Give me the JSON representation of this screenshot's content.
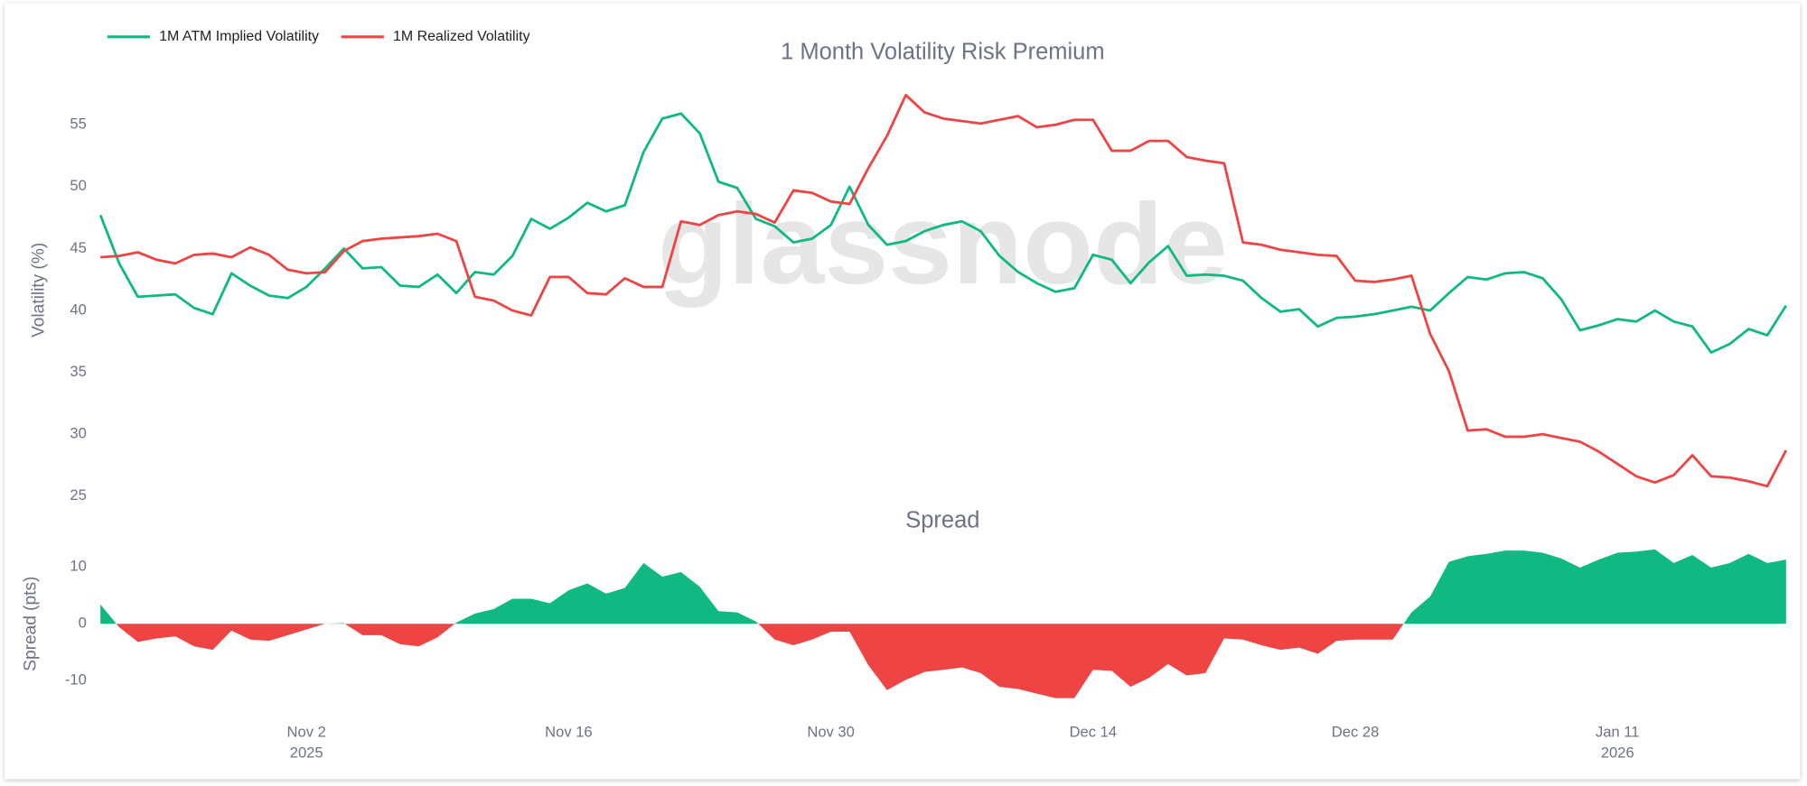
{
  "chart_data": [
    {
      "type": "line",
      "title": "1 Month Volatility Risk Premium",
      "ylabel": "Volatility (%)",
      "watermark": "glassnode",
      "legend": "top-left",
      "xlim": [
        "2025-10-22",
        "2026-01-20"
      ],
      "x": [
        "2025-10-22",
        "2025-10-23",
        "2025-10-24",
        "2025-10-25",
        "2025-10-26",
        "2025-10-27",
        "2025-10-28",
        "2025-10-29",
        "2025-10-30",
        "2025-10-31",
        "2025-11-01",
        "2025-11-02",
        "2025-11-03",
        "2025-11-04",
        "2025-11-05",
        "2025-11-06",
        "2025-11-07",
        "2025-11-08",
        "2025-11-09",
        "2025-11-10",
        "2025-11-11",
        "2025-11-12",
        "2025-11-13",
        "2025-11-14",
        "2025-11-15",
        "2025-11-16",
        "2025-11-17",
        "2025-11-18",
        "2025-11-19",
        "2025-11-20",
        "2025-11-21",
        "2025-11-22",
        "2025-11-23",
        "2025-11-24",
        "2025-11-25",
        "2025-11-26",
        "2025-11-27",
        "2025-11-28",
        "2025-11-29",
        "2025-11-30",
        "2025-12-01",
        "2025-12-02",
        "2025-12-03",
        "2025-12-04",
        "2025-12-05",
        "2025-12-06",
        "2025-12-07",
        "2025-12-08",
        "2025-12-09",
        "2025-12-10",
        "2025-12-11",
        "2025-12-12",
        "2025-12-13",
        "2025-12-14",
        "2025-12-15",
        "2025-12-16",
        "2025-12-17",
        "2025-12-18",
        "2025-12-19",
        "2025-12-20",
        "2025-12-21",
        "2025-12-22",
        "2025-12-23",
        "2025-12-24",
        "2025-12-25",
        "2025-12-26",
        "2025-12-27",
        "2025-12-28",
        "2025-12-29",
        "2025-12-30",
        "2025-12-31",
        "2026-01-01",
        "2026-01-02",
        "2026-01-03",
        "2026-01-04",
        "2026-01-05",
        "2026-01-06",
        "2026-01-07",
        "2026-01-08",
        "2026-01-09",
        "2026-01-10",
        "2026-01-11",
        "2026-01-12",
        "2026-01-13",
        "2026-01-14",
        "2026-01-15",
        "2026-01-16",
        "2026-01-17",
        "2026-01-18",
        "2026-01-19",
        "2026-01-20"
      ],
      "ylim": [
        22.5,
        59.5
      ],
      "yticks": [
        25,
        30,
        35,
        40,
        45,
        50,
        55
      ],
      "series": [
        {
          "name": "1M ATM Implied Volatility",
          "color": "#10b981",
          "values": [
            47.7,
            43.8,
            41.1,
            41.2,
            41.3,
            40.2,
            39.7,
            43.0,
            42.0,
            41.2,
            41.0,
            41.9,
            43.4,
            45.0,
            43.4,
            43.5,
            42.0,
            41.9,
            42.9,
            41.4,
            43.1,
            42.9,
            44.4,
            47.4,
            46.6,
            47.5,
            48.7,
            48.0,
            48.5,
            52.8,
            55.5,
            55.9,
            54.3,
            50.4,
            49.9,
            47.4,
            46.8,
            45.5,
            45.8,
            46.9,
            50.0,
            46.9,
            45.3,
            45.6,
            46.4,
            46.9,
            47.2,
            46.4,
            44.4,
            43.1,
            42.2,
            41.5,
            41.8,
            44.5,
            44.1,
            42.2,
            43.9,
            45.2,
            42.8,
            42.9,
            42.8,
            42.4,
            41.0,
            39.9,
            40.1,
            38.7,
            39.4,
            39.5,
            39.7,
            40.0,
            40.3,
            40.0,
            41.4,
            42.7,
            42.5,
            43.0,
            43.1,
            42.6,
            40.9,
            38.4,
            38.8,
            39.3,
            39.1,
            40.0,
            39.1,
            38.7,
            36.6,
            37.3,
            38.5,
            38.0,
            40.4
          ]
        },
        {
          "name": "1M Realized Volatility",
          "color": "#ef4444",
          "values": [
            44.3,
            44.4,
            44.7,
            44.1,
            43.8,
            44.5,
            44.6,
            44.3,
            45.1,
            44.5,
            43.3,
            43.0,
            43.1,
            44.8,
            45.6,
            45.8,
            45.9,
            46.0,
            46.2,
            45.6,
            41.1,
            40.8,
            40.0,
            39.6,
            42.7,
            42.7,
            41.4,
            41.3,
            42.6,
            41.9,
            41.9,
            47.2,
            46.9,
            47.7,
            48.0,
            47.8,
            47.1,
            49.7,
            49.5,
            48.8,
            48.6,
            51.5,
            54.1,
            57.4,
            56.0,
            55.5,
            55.3,
            55.1,
            55.4,
            55.7,
            54.8,
            55.0,
            55.4,
            55.4,
            52.9,
            52.9,
            53.7,
            53.7,
            52.4,
            52.1,
            51.9,
            45.5,
            45.3,
            44.9,
            44.7,
            44.5,
            44.4,
            42.4,
            42.3,
            42.5,
            42.8,
            38.1,
            35.1,
            30.3,
            30.4,
            29.8,
            29.8,
            30.0,
            29.7,
            29.4,
            28.6,
            27.6,
            26.6,
            26.1,
            26.7,
            28.3,
            26.6,
            26.5,
            26.2,
            25.8,
            28.7
          ]
        }
      ]
    },
    {
      "type": "area",
      "title": "Spread",
      "ylabel": "Spread (pts)",
      "positive_color": "#10b981",
      "negative_color": "#ef4444",
      "xlim": [
        "2025-10-22",
        "2026-01-20"
      ],
      "x": [
        "2025-10-22",
        "2025-10-23",
        "2025-10-24",
        "2025-10-25",
        "2025-10-26",
        "2025-10-27",
        "2025-10-28",
        "2025-10-29",
        "2025-10-30",
        "2025-10-31",
        "2025-11-01",
        "2025-11-02",
        "2025-11-03",
        "2025-11-04",
        "2025-11-05",
        "2025-11-06",
        "2025-11-07",
        "2025-11-08",
        "2025-11-09",
        "2025-11-10",
        "2025-11-11",
        "2025-11-12",
        "2025-11-13",
        "2025-11-14",
        "2025-11-15",
        "2025-11-16",
        "2025-11-17",
        "2025-11-18",
        "2025-11-19",
        "2025-11-20",
        "2025-11-21",
        "2025-11-22",
        "2025-11-23",
        "2025-11-24",
        "2025-11-25",
        "2025-11-26",
        "2025-11-27",
        "2025-11-28",
        "2025-11-29",
        "2025-11-30",
        "2025-12-01",
        "2025-12-02",
        "2025-12-03",
        "2025-12-04",
        "2025-12-05",
        "2025-12-06",
        "2025-12-07",
        "2025-12-08",
        "2025-12-09",
        "2025-12-10",
        "2025-12-11",
        "2025-12-12",
        "2025-12-13",
        "2025-12-14",
        "2025-12-15",
        "2025-12-16",
        "2025-12-17",
        "2025-12-18",
        "2025-12-19",
        "2025-12-20",
        "2025-12-21",
        "2025-12-22",
        "2025-12-23",
        "2025-12-24",
        "2025-12-25",
        "2025-12-26",
        "2025-12-27",
        "2025-12-28",
        "2025-12-29",
        "2025-12-30",
        "2025-12-31",
        "2026-01-01",
        "2026-01-02",
        "2026-01-03",
        "2026-01-04",
        "2026-01-05",
        "2026-01-06",
        "2026-01-07",
        "2026-01-08",
        "2026-01-09",
        "2026-01-10",
        "2026-01-11",
        "2026-01-12",
        "2026-01-13",
        "2026-01-14",
        "2026-01-15",
        "2026-01-16",
        "2026-01-17",
        "2026-01-18",
        "2026-01-19",
        "2026-01-20"
      ],
      "values": [
        3.4,
        -0.6,
        -3.2,
        -2.6,
        -2.2,
        -4.0,
        -4.6,
        -1.2,
        -2.8,
        -3.0,
        -2.0,
        -1.0,
        0.0,
        0.1,
        -2.0,
        -2.0,
        -3.6,
        -4.0,
        -2.4,
        0.2,
        1.8,
        2.6,
        4.4,
        4.4,
        3.6,
        5.9,
        7.1,
        5.3,
        6.3,
        10.7,
        8.3,
        9.1,
        6.5,
        2.2,
        2.0,
        0.4,
        -2.8,
        -3.8,
        -2.8,
        -1.4,
        -1.4,
        -7.3,
        -11.7,
        -9.9,
        -8.5,
        -8.1,
        -7.7,
        -8.7,
        -11.1,
        -11.5,
        -12.3,
        -13.1,
        -13.1,
        -8.1,
        -8.3,
        -11.1,
        -9.5,
        -7.1,
        -9.1,
        -8.7,
        -2.6,
        -2.8,
        -3.8,
        -4.6,
        -4.2,
        -5.3,
        -3.0,
        -2.8,
        -2.8,
        -2.8,
        2.0,
        4.8,
        10.9,
        11.9,
        12.3,
        12.9,
        12.9,
        12.5,
        11.5,
        9.9,
        11.3,
        12.5,
        12.7,
        13.1,
        10.7,
        12.1,
        9.9,
        10.7,
        12.3,
        10.7,
        11.3
      ],
      "ylim": [
        -15,
        15
      ],
      "yticks": [
        -10,
        0,
        10
      ],
      "xticks": [
        {
          "value": "2025-11-02",
          "label": "Nov 2"
        },
        {
          "value": "2025-11-16",
          "label": "Nov 16"
        },
        {
          "value": "2025-11-30",
          "label": "Nov 30"
        },
        {
          "value": "2025-12-14",
          "label": "Dec 14"
        },
        {
          "value": "2025-12-28",
          "label": "Dec 28"
        },
        {
          "value": "2026-01-11",
          "label": "Jan 11"
        }
      ],
      "xtick_years": [
        {
          "value": "2025-11-02",
          "label": "2025"
        },
        {
          "value": "2026-01-11",
          "label": "2026"
        }
      ]
    }
  ]
}
